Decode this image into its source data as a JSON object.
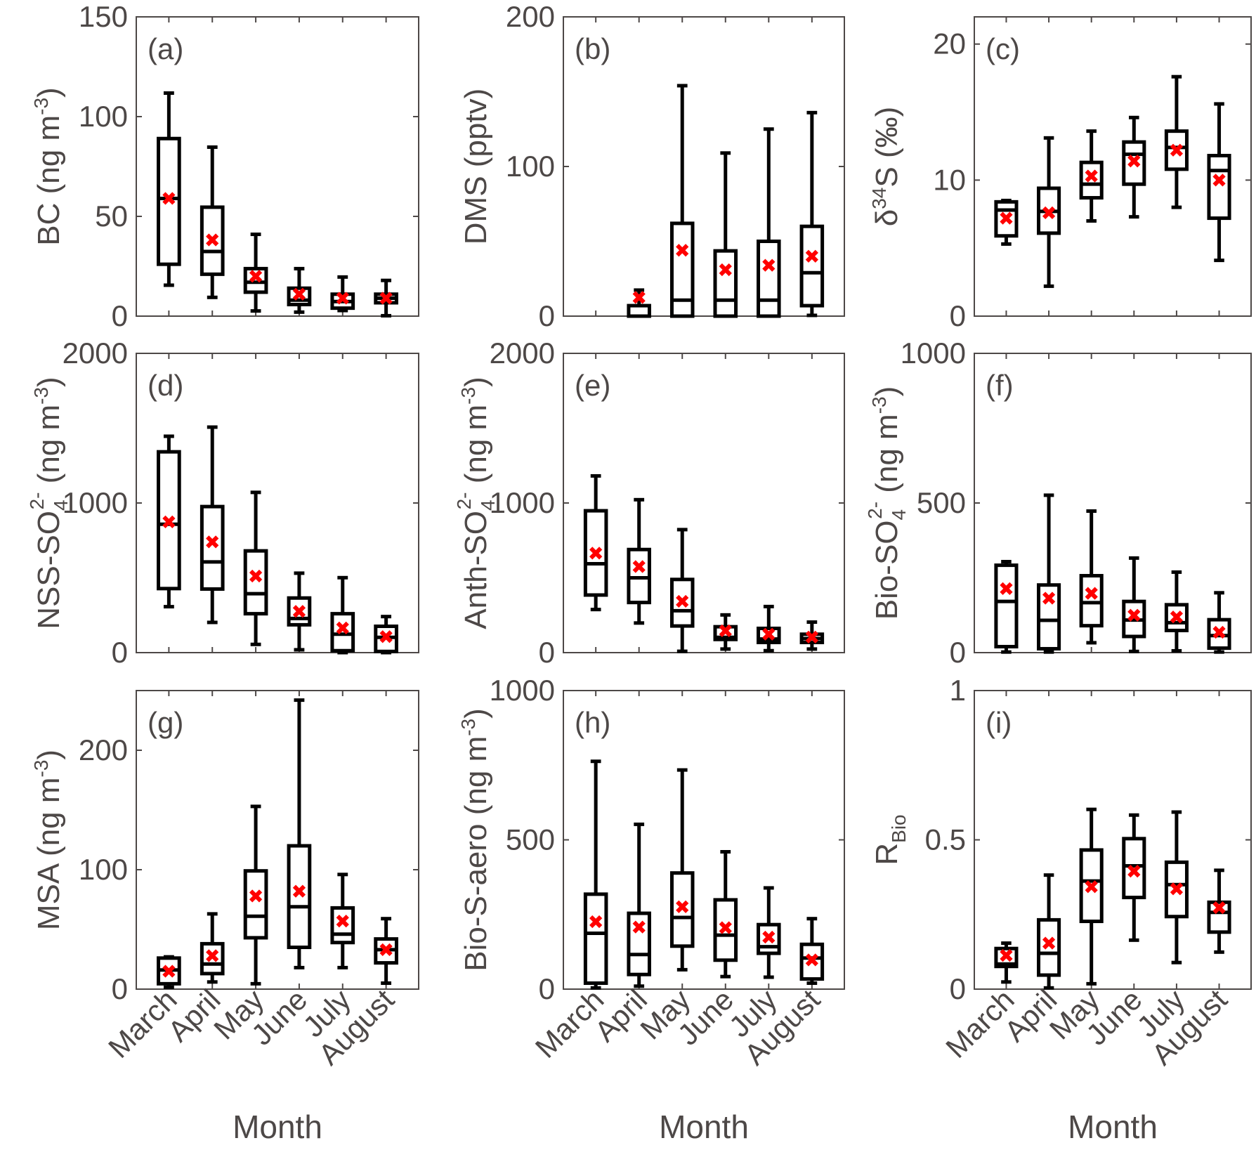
{
  "figure": {
    "x_label": "Month",
    "categories": [
      "March",
      "April",
      "May",
      "June",
      "July",
      "August"
    ],
    "box_color": "#000000",
    "mean_marker_color": "#ff0000",
    "text_color": "#4d4847"
  },
  "chart_data": [
    {
      "type": "box",
      "panel_label": "(a)",
      "ylabel": "BC (ng m-3)",
      "ylabel_parts": {
        "main": "BC (ng m",
        "sup": "-3",
        "tail": ")"
      },
      "ylim": [
        0,
        150
      ],
      "yticks": [
        0,
        50,
        100,
        150
      ],
      "categories": [
        "March",
        "April",
        "May",
        "June",
        "July",
        "August"
      ],
      "boxes": [
        {
          "category": "March",
          "whisker_low": 15.5,
          "q1": 26,
          "median": 59,
          "q3": 89,
          "whisker_high": 111.8,
          "mean": 59
        },
        {
          "category": "April",
          "whisker_low": 9.4,
          "q1": 21,
          "median": 32.4,
          "q3": 54.6,
          "whisker_high": 84.7,
          "mean": 38.2
        },
        {
          "category": "May",
          "whisker_low": 2.6,
          "q1": 12,
          "median": 17,
          "q3": 23.8,
          "whisker_high": 41,
          "mean": 20
        },
        {
          "category": "June",
          "whisker_low": 2,
          "q1": 5.8,
          "median": 8,
          "q3": 14,
          "whisker_high": 23.8,
          "mean": 11
        },
        {
          "category": "July",
          "whisker_low": 2.8,
          "q1": 4,
          "median": 7.3,
          "q3": 11,
          "whisker_high": 19.6,
          "mean": 9
        },
        {
          "category": "August",
          "whisker_low": 0.2,
          "q1": 6.7,
          "median": 9,
          "q3": 11,
          "whisker_high": 17.9,
          "mean": 9
        }
      ]
    },
    {
      "type": "box",
      "panel_label": "(b)",
      "ylabel": "DMS (pptv)",
      "ylabel_parts": {
        "main": "DMS (pptv)",
        "sup": "",
        "tail": ""
      },
      "ylim": [
        0,
        200
      ],
      "yticks": [
        0,
        100,
        200
      ],
      "categories": [
        "March",
        "April",
        "May",
        "June",
        "July",
        "August"
      ],
      "boxes": [
        {
          "category": "March",
          "whisker_low": null,
          "q1": null,
          "median": null,
          "q3": null,
          "whisker_high": null,
          "mean": null
        },
        {
          "category": "April",
          "whisker_low": 0,
          "q1": 0,
          "median": 0,
          "q3": 7,
          "whisker_high": 17.4,
          "mean": 12.5
        },
        {
          "category": "May",
          "whisker_low": 0,
          "q1": 0,
          "median": 10.7,
          "q3": 62,
          "whisker_high": 154,
          "mean": 44
        },
        {
          "category": "June",
          "whisker_low": 0,
          "q1": 0,
          "median": 10.7,
          "q3": 43.6,
          "whisker_high": 109,
          "mean": 31
        },
        {
          "category": "July",
          "whisker_low": 0,
          "q1": 0,
          "median": 10.7,
          "q3": 50,
          "whisker_high": 125,
          "mean": 34
        },
        {
          "category": "August",
          "whisker_low": 0.5,
          "q1": 7,
          "median": 29,
          "q3": 60,
          "whisker_high": 136,
          "mean": 40
        }
      ]
    },
    {
      "type": "box",
      "panel_label": "(c)",
      "ylabel": "δ34S (‰)",
      "ylabel_parts": {
        "pre": "δ",
        "presup": "34",
        "main": "S (‰)",
        "sup": "",
        "tail": ""
      },
      "ylim": [
        0,
        22
      ],
      "yticks": [
        0,
        10,
        20
      ],
      "categories": [
        "March",
        "April",
        "May",
        "June",
        "July",
        "August"
      ],
      "boxes": [
        {
          "category": "March",
          "whisker_low": 5.3,
          "q1": 5.9,
          "median": 7.8,
          "q3": 8.4,
          "whisker_high": 8.5,
          "mean": 7.2
        },
        {
          "category": "April",
          "whisker_low": 2.2,
          "q1": 6.1,
          "median": 7.7,
          "q3": 9.4,
          "whisker_high": 13.1,
          "mean": 7.6
        },
        {
          "category": "May",
          "whisker_low": 7.0,
          "q1": 8.7,
          "median": 9.7,
          "q3": 11.3,
          "whisker_high": 13.6,
          "mean": 10.3
        },
        {
          "category": "June",
          "whisker_low": 7.3,
          "q1": 9.7,
          "median": 11.9,
          "q3": 12.8,
          "whisker_high": 14.6,
          "mean": 11.4
        },
        {
          "category": "July",
          "whisker_low": 8.0,
          "q1": 10.8,
          "median": 12.4,
          "q3": 13.6,
          "whisker_high": 17.6,
          "mean": 12.2
        },
        {
          "category": "August",
          "whisker_low": 4.1,
          "q1": 7.2,
          "median": 10.7,
          "q3": 11.8,
          "whisker_high": 15.6,
          "mean": 10.0
        }
      ]
    },
    {
      "type": "box",
      "panel_label": "(d)",
      "ylabel": "NSS-SO4 2- (ng m-3)",
      "ylabel_parts": {
        "main": "NSS-SO",
        "sub": "4",
        "supion": "2-",
        "unit": " (ng m",
        "sup": "-3",
        "tail": ")"
      },
      "ylim": [
        0,
        2000
      ],
      "yticks": [
        0,
        1000,
        2000
      ],
      "categories": [
        "March",
        "April",
        "May",
        "June",
        "July",
        "August"
      ],
      "boxes": [
        {
          "category": "March",
          "whisker_low": 307,
          "q1": 428,
          "median": 858,
          "q3": 1342,
          "whisker_high": 1446,
          "mean": 874
        },
        {
          "category": "April",
          "whisker_low": 202,
          "q1": 425,
          "median": 606,
          "q3": 976,
          "whisker_high": 1507,
          "mean": 740
        },
        {
          "category": "May",
          "whisker_low": 55,
          "q1": 260,
          "median": 394,
          "q3": 680,
          "whisker_high": 1071,
          "mean": 512
        },
        {
          "category": "June",
          "whisker_low": 19,
          "q1": 186,
          "median": 228,
          "q3": 365,
          "whisker_high": 531,
          "mean": 276
        },
        {
          "category": "July",
          "whisker_low": 0,
          "q1": 13,
          "median": 123,
          "q3": 260,
          "whisker_high": 501,
          "mean": 165
        },
        {
          "category": "August",
          "whisker_low": 0,
          "q1": 8,
          "median": 102,
          "q3": 176,
          "whisker_high": 241,
          "mean": 107
        }
      ]
    },
    {
      "type": "box",
      "panel_label": "(e)",
      "ylabel": "Anth-SO4 2- (ng m-3)",
      "ylabel_parts": {
        "main": "Anth-SO",
        "sub": "4",
        "supion": "2-",
        "unit": " (ng m",
        "sup": "-3",
        "tail": ")"
      },
      "ylim": [
        0,
        2000
      ],
      "yticks": [
        0,
        1000,
        2000
      ],
      "categories": [
        "March",
        "April",
        "May",
        "June",
        "July",
        "August"
      ],
      "boxes": [
        {
          "category": "March",
          "whisker_low": 288,
          "q1": 385,
          "median": 594,
          "q3": 948,
          "whisker_high": 1181,
          "mean": 665
        },
        {
          "category": "April",
          "whisker_low": 198,
          "q1": 335,
          "median": 500,
          "q3": 689,
          "whisker_high": 1022,
          "mean": 575
        },
        {
          "category": "May",
          "whisker_low": 9,
          "q1": 178,
          "median": 280,
          "q3": 489,
          "whisker_high": 822,
          "mean": 343
        },
        {
          "category": "June",
          "whisker_low": 24,
          "q1": 88,
          "median": 102,
          "q3": 173,
          "whisker_high": 252,
          "mean": 146
        },
        {
          "category": "July",
          "whisker_low": 13,
          "q1": 68,
          "median": 91,
          "q3": 162,
          "whisker_high": 308,
          "mean": 123
        },
        {
          "category": "August",
          "whisker_low": 24,
          "q1": 68,
          "median": 94,
          "q3": 123,
          "whisker_high": 204,
          "mean": 104
        }
      ]
    },
    {
      "type": "box",
      "panel_label": "(f)",
      "ylabel": "Bio-SO4 2- (ng m-3)",
      "ylabel_parts": {
        "main": "Bio-SO",
        "sub": "4",
        "supion": "2-",
        "unit": " (ng m",
        "sup": "-3",
        "tail": ")"
      },
      "ylim": [
        0,
        1000
      ],
      "yticks": [
        0,
        500,
        1000
      ],
      "categories": [
        "March",
        "April",
        "May",
        "June",
        "July",
        "August"
      ],
      "boxes": [
        {
          "category": "March",
          "whisker_low": 2,
          "q1": 20,
          "median": 171,
          "q3": 292,
          "whisker_high": 304,
          "mean": 214
        },
        {
          "category": "April",
          "whisker_low": 2,
          "q1": 13,
          "median": 108,
          "q3": 226,
          "whisker_high": 526,
          "mean": 182
        },
        {
          "category": "May",
          "whisker_low": 33,
          "q1": 90,
          "median": 167,
          "q3": 257,
          "whisker_high": 473,
          "mean": 198
        },
        {
          "category": "June",
          "whisker_low": 4,
          "q1": 54,
          "median": 109,
          "q3": 171,
          "whisker_high": 316,
          "mean": 125
        },
        {
          "category": "July",
          "whisker_low": 6,
          "q1": 74,
          "median": 100,
          "q3": 160,
          "whisker_high": 269,
          "mean": 119
        },
        {
          "category": "August",
          "whisker_low": 2,
          "q1": 15,
          "median": 57,
          "q3": 110,
          "whisker_high": 200,
          "mean": 68
        }
      ]
    },
    {
      "type": "box",
      "panel_label": "(g)",
      "ylabel": "MSA (ng m-3)",
      "ylabel_parts": {
        "main": "MSA (ng m",
        "sup": "-3",
        "tail": ")"
      },
      "ylim": [
        0,
        250
      ],
      "yticks": [
        0,
        100,
        200
      ],
      "categories": [
        "March",
        "April",
        "May",
        "June",
        "July",
        "August"
      ],
      "boxes": [
        {
          "category": "March",
          "whisker_low": 1.6,
          "q1": 4.5,
          "median": 16,
          "q3": 26,
          "whisker_high": 27,
          "mean": 15
        },
        {
          "category": "April",
          "whisker_low": 6,
          "q1": 13,
          "median": 21,
          "q3": 38,
          "whisker_high": 63,
          "mean": 28
        },
        {
          "category": "May",
          "whisker_low": 4.5,
          "q1": 43,
          "median": 61,
          "q3": 99,
          "whisker_high": 153,
          "mean": 78
        },
        {
          "category": "June",
          "whisker_low": 18,
          "q1": 35,
          "median": 69,
          "q3": 120,
          "whisker_high": 242,
          "mean": 82
        },
        {
          "category": "July",
          "whisker_low": 18,
          "q1": 39,
          "median": 46,
          "q3": 68,
          "whisker_high": 96,
          "mean": 57
        },
        {
          "category": "August",
          "whisker_low": 5,
          "q1": 22,
          "median": 33,
          "q3": 42,
          "whisker_high": 59,
          "mean": 33
        }
      ]
    },
    {
      "type": "box",
      "panel_label": "(h)",
      "ylabel": "Bio-S-aero (ng m-3)",
      "ylabel_parts": {
        "main": "Bio-S-aero (ng m",
        "sup": "-3",
        "tail": ")"
      },
      "ylim": [
        0,
        1000
      ],
      "yticks": [
        0,
        500,
        1000
      ],
      "categories": [
        "March",
        "April",
        "May",
        "June",
        "July",
        "August"
      ],
      "boxes": [
        {
          "category": "March",
          "whisker_low": 4,
          "q1": 20,
          "median": 187,
          "q3": 318,
          "whisker_high": 763,
          "mean": 226
        },
        {
          "category": "April",
          "whisker_low": 10,
          "q1": 49,
          "median": 116,
          "q3": 254,
          "whisker_high": 552,
          "mean": 208
        },
        {
          "category": "May",
          "whisker_low": 65,
          "q1": 144,
          "median": 240,
          "q3": 389,
          "whisker_high": 734,
          "mean": 276
        },
        {
          "category": "June",
          "whisker_low": 42,
          "q1": 97,
          "median": 181,
          "q3": 299,
          "whisker_high": 460,
          "mean": 206
        },
        {
          "category": "July",
          "whisker_low": 40,
          "q1": 120,
          "median": 142,
          "q3": 216,
          "whisker_high": 339,
          "mean": 174
        },
        {
          "category": "August",
          "whisker_low": 20,
          "q1": 34,
          "median": 104,
          "q3": 150,
          "whisker_high": 236,
          "mean": 98
        }
      ]
    },
    {
      "type": "box",
      "panel_label": "(i)",
      "ylabel": "RBio",
      "ylabel_parts": {
        "main": "R",
        "sub": "Bio"
      },
      "ylim": [
        0,
        1
      ],
      "yticks": [
        0,
        0.5,
        1
      ],
      "categories": [
        "March",
        "April",
        "May",
        "June",
        "July",
        "August"
      ],
      "boxes": [
        {
          "category": "March",
          "whisker_low": 0.024,
          "q1": 0.076,
          "median": 0.084,
          "q3": 0.136,
          "whisker_high": 0.154,
          "mean": 0.113
        },
        {
          "category": "April",
          "whisker_low": 0.004,
          "q1": 0.047,
          "median": 0.12,
          "q3": 0.232,
          "whisker_high": 0.382,
          "mean": 0.154
        },
        {
          "category": "May",
          "whisker_low": 0.018,
          "q1": 0.227,
          "median": 0.362,
          "q3": 0.466,
          "whisker_high": 0.602,
          "mean": 0.343
        },
        {
          "category": "June",
          "whisker_low": 0.164,
          "q1": 0.307,
          "median": 0.413,
          "q3": 0.504,
          "whisker_high": 0.583,
          "mean": 0.395
        },
        {
          "category": "July",
          "whisker_low": 0.089,
          "q1": 0.243,
          "median": 0.35,
          "q3": 0.425,
          "whisker_high": 0.593,
          "mean": 0.336
        },
        {
          "category": "August",
          "whisker_low": 0.124,
          "q1": 0.191,
          "median": 0.257,
          "q3": 0.291,
          "whisker_high": 0.398,
          "mean": 0.273
        }
      ]
    }
  ]
}
